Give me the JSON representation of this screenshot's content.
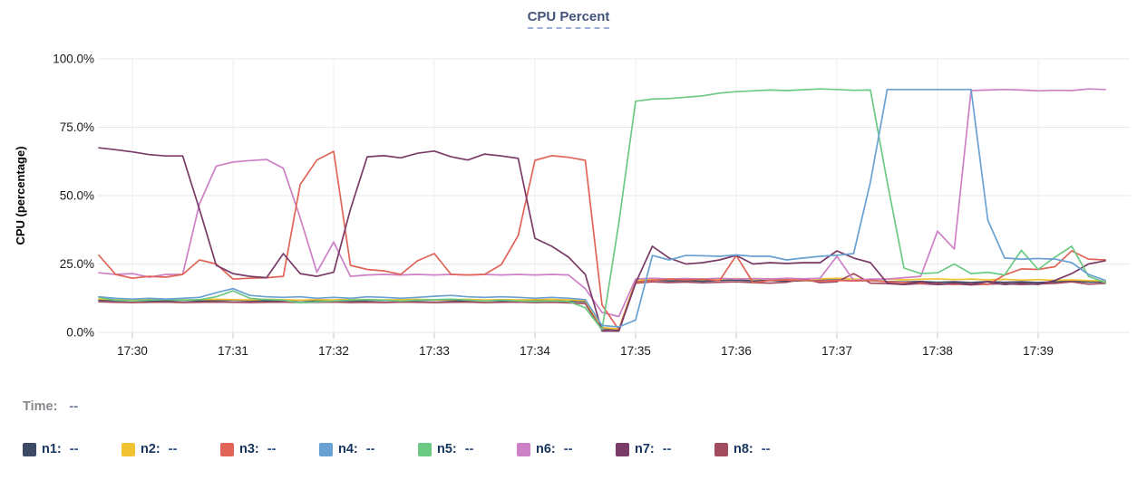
{
  "header": {
    "title": "CPU Percent"
  },
  "status": {
    "time_label": "Time:",
    "time_value": "--"
  },
  "legend": {
    "items": [
      {
        "id": "n1",
        "label": "n1:",
        "value": "--",
        "color": "#3c4a66"
      },
      {
        "id": "n2",
        "label": "n2:",
        "value": "--",
        "color": "#f1c232"
      },
      {
        "id": "n3",
        "label": "n3:",
        "value": "--",
        "color": "#e06558"
      },
      {
        "id": "n4",
        "label": "n4:",
        "value": "--",
        "color": "#69a1d2"
      },
      {
        "id": "n5",
        "label": "n5:",
        "value": "--",
        "color": "#6cc983"
      },
      {
        "id": "n6",
        "label": "n6:",
        "value": "--",
        "color": "#cd80c6"
      },
      {
        "id": "n7",
        "label": "n7:",
        "value": "--",
        "color": "#7a3b67"
      },
      {
        "id": "n8",
        "label": "n8:",
        "value": "--",
        "color": "#a34b5f"
      }
    ]
  },
  "chart_data": {
    "type": "line",
    "title": "CPU Percent",
    "xlabel": "",
    "ylabel": "CPU (percentage)",
    "ylim": [
      0,
      100
    ],
    "grid": true,
    "legend_position": "bottom",
    "y_ticks": [
      {
        "value": 100,
        "label": "100.0%"
      },
      {
        "value": 75,
        "label": "75.0%"
      },
      {
        "value": 50,
        "label": "50.0%"
      },
      {
        "value": 25,
        "label": "25.0%"
      },
      {
        "value": 0,
        "label": "0.0%"
      }
    ],
    "x_ticks": [
      "17:30",
      "17:31",
      "17:32",
      "17:33",
      "17:34",
      "17:35",
      "17:36",
      "17:37",
      "17:38",
      "17:39"
    ],
    "x_start": "17:29:40",
    "x_interval_seconds": 10,
    "unit": "percent",
    "series": [
      {
        "name": "n1",
        "color": "#3c4a66",
        "values": [
          11.8,
          11.6,
          11.5,
          11.6,
          11.5,
          11.7,
          11.5,
          11.6,
          11.8,
          11.5,
          11.6,
          11.5,
          11.7,
          11.5,
          11.6,
          11.5,
          11.6,
          11.7,
          11.5,
          11.6,
          11.8,
          11.6,
          11.5,
          11.7,
          11.5,
          11.6,
          11.5,
          11.7,
          11.5,
          11.2,
          1.5,
          1.0,
          18.5,
          19.2,
          18.8,
          19.0,
          18.7,
          19.0,
          19.2,
          18.8,
          19.0,
          18.7,
          18.9,
          19.0,
          19.2,
          18.8,
          19.0,
          18.6,
          18.4,
          18.6,
          18.3,
          18.5,
          18.2,
          18.6,
          18.3,
          18.5,
          18.2,
          18.5,
          18.8,
          18.4,
          18.5
        ]
      },
      {
        "name": "n2",
        "color": "#f1c232",
        "values": [
          12.2,
          12.0,
          11.9,
          12.0,
          12.1,
          11.9,
          12.0,
          12.1,
          12.0,
          11.9,
          12.1,
          12.0,
          11.8,
          12.0,
          11.9,
          12.1,
          12.0,
          11.9,
          12.0,
          12.1,
          11.9,
          12.0,
          12.1,
          11.9,
          12.0,
          11.9,
          12.0,
          12.1,
          11.9,
          11.6,
          1.8,
          1.2,
          18.9,
          19.6,
          19.4,
          19.6,
          19.3,
          19.5,
          19.7,
          19.4,
          19.6,
          19.3,
          19.5,
          19.6,
          19.8,
          19.5,
          19.3,
          19.5,
          19.2,
          19.4,
          19.6,
          19.3,
          19.5,
          19.2,
          19.4,
          19.1,
          19.3,
          19.0,
          19.2,
          18.9,
          18.8
        ]
      },
      {
        "name": "n8",
        "color": "#a34b5f",
        "values": [
          11.2,
          11.0,
          10.9,
          11.0,
          11.1,
          10.9,
          11.0,
          11.1,
          11.0,
          10.9,
          11.0,
          11.1,
          10.9,
          11.0,
          11.1,
          10.9,
          11.0,
          10.9,
          11.1,
          11.0,
          10.9,
          11.0,
          11.1,
          10.9,
          11.0,
          11.1,
          10.9,
          11.0,
          10.8,
          10.5,
          0.8,
          0.5,
          18.0,
          18.5,
          18.2,
          18.4,
          18.1,
          18.3,
          18.5,
          18.2,
          18.0,
          18.3,
          19.5,
          18.2,
          18.5,
          21.5,
          18.0,
          17.8,
          17.5,
          17.8,
          17.5,
          17.7,
          17.4,
          17.6,
          17.8,
          17.5,
          17.7,
          17.9,
          18.5,
          17.6,
          17.9
        ]
      },
      {
        "name": "n6",
        "color": "#cd80c6",
        "values": [
          21.8,
          21.2,
          21.5,
          20.2,
          21.2,
          21.2,
          47.0,
          60.8,
          62.3,
          62.8,
          63.2,
          60.0,
          42.0,
          22.0,
          33.0,
          20.5,
          21.0,
          21.2,
          21.0,
          21.2,
          21.0,
          21.2,
          21.0,
          21.2,
          21.0,
          21.2,
          21.0,
          21.2,
          21.0,
          16.0,
          7.3,
          5.8,
          19.5,
          19.8,
          19.5,
          19.7,
          19.5,
          19.8,
          19.5,
          19.7,
          19.5,
          19.8,
          19.6,
          19.8,
          27.8,
          19.0,
          19.5,
          19.5,
          20.0,
          20.5,
          37.0,
          30.5,
          88.4,
          88.6,
          88.8,
          88.6,
          88.3,
          88.5,
          88.4,
          89.0,
          88.8
        ]
      },
      {
        "name": "n3",
        "color": "#e06558",
        "values": [
          28.2,
          21.2,
          19.8,
          20.5,
          20.2,
          21.2,
          26.5,
          25.0,
          19.5,
          19.8,
          20.0,
          20.5,
          54.0,
          63.0,
          66.2,
          24.5,
          23.0,
          22.5,
          21.2,
          26.2,
          28.8,
          21.2,
          21.0,
          21.2,
          24.8,
          35.4,
          62.9,
          64.6,
          64.0,
          62.9,
          10.0,
          1.0,
          18.2,
          19.0,
          19.5,
          19.2,
          19.5,
          18.9,
          28.1,
          18.2,
          19.0,
          19.2,
          19.0,
          18.8,
          19.0,
          18.8,
          19.0,
          18.5,
          18.2,
          18.0,
          17.8,
          17.5,
          17.8,
          17.5,
          21.0,
          23.2,
          23.0,
          24.0,
          29.8,
          26.8,
          26.5
        ]
      },
      {
        "name": "n7",
        "color": "#7a3b67",
        "values": [
          67.5,
          66.8,
          66.0,
          65.0,
          64.5,
          64.5,
          45.0,
          24.5,
          21.5,
          20.5,
          20.0,
          28.8,
          21.5,
          20.5,
          22.0,
          45.0,
          64.2,
          64.6,
          63.8,
          65.5,
          66.3,
          64.2,
          63.0,
          65.2,
          64.5,
          63.6,
          34.4,
          31.5,
          27.5,
          21.2,
          0.5,
          0.5,
          18.0,
          31.5,
          27.2,
          25.0,
          25.5,
          26.5,
          28.1,
          25.0,
          25.5,
          25.2,
          25.5,
          25.5,
          29.8,
          27.2,
          25.5,
          18.0,
          17.5,
          18.5,
          17.5,
          18.0,
          17.5,
          18.5,
          17.5,
          18.0,
          17.5,
          19.0,
          21.5,
          25.0,
          26.2
        ]
      },
      {
        "name": "n5",
        "color": "#6cc983",
        "values": [
          12.8,
          11.8,
          11.5,
          11.8,
          12.0,
          11.8,
          12.0,
          13.0,
          15.2,
          12.5,
          12.0,
          11.8,
          10.8,
          11.2,
          11.5,
          11.8,
          12.0,
          11.8,
          11.5,
          11.8,
          12.0,
          12.2,
          11.8,
          11.5,
          11.8,
          11.5,
          11.3,
          11.5,
          11.3,
          9.0,
          1.0,
          40.0,
          84.5,
          85.3,
          85.5,
          86.0,
          86.5,
          87.5,
          88.0,
          88.3,
          88.6,
          88.4,
          88.7,
          89.0,
          88.8,
          88.5,
          88.6,
          55.0,
          23.5,
          21.5,
          21.8,
          25.0,
          21.5,
          22.0,
          21.0,
          30.0,
          23.0,
          27.5,
          31.5,
          20.5,
          18.2
        ]
      },
      {
        "name": "n4",
        "color": "#69a1d2",
        "values": [
          13.0,
          12.5,
          12.2,
          12.5,
          12.2,
          12.5,
          12.8,
          14.5,
          16.0,
          13.5,
          13.0,
          12.8,
          13.0,
          12.5,
          12.8,
          12.5,
          13.0,
          12.8,
          12.5,
          12.8,
          13.2,
          13.5,
          13.0,
          12.8,
          13.0,
          12.8,
          12.5,
          12.8,
          12.5,
          12.0,
          2.5,
          2.0,
          4.5,
          28.1,
          26.5,
          28.1,
          28.0,
          27.8,
          28.3,
          27.8,
          27.8,
          26.5,
          27.2,
          27.8,
          28.2,
          28.8,
          55.0,
          88.8,
          88.8,
          88.8,
          88.8,
          88.8,
          88.8,
          41.0,
          27.2,
          26.8,
          27.0,
          26.8,
          25.5,
          21.2,
          19.0
        ]
      }
    ]
  }
}
